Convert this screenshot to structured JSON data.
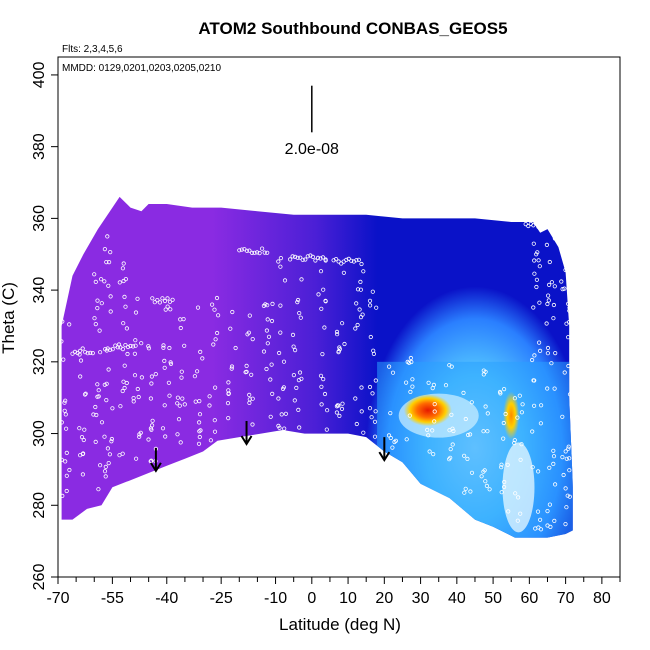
{
  "chart_data": {
    "type": "heatmap",
    "title": "ATOM2 Southbound CONBAS_GEOS5",
    "annotations": {
      "flights": "Flts: 2,3,4,5,6",
      "dates": "MMDD: 0129,0201,0203,0205,0210",
      "scale_label": "2.0e-08"
    },
    "xlabel": "Latitude (deg N)",
    "ylabel": "Theta (C)",
    "xlim": [
      -70,
      85
    ],
    "ylim": [
      260,
      405
    ],
    "x_tick_labels": [
      "-70",
      "-55",
      "-40",
      "-25",
      "-10",
      "0",
      "10",
      "20",
      "30",
      "40",
      "50",
      "60",
      "70",
      "80"
    ],
    "x_tick_values": [
      -70,
      -55,
      -40,
      -25,
      -10,
      0,
      10,
      20,
      30,
      40,
      50,
      60,
      70,
      80
    ],
    "y_tick_labels": [
      "260",
      "280",
      "300",
      "320",
      "340",
      "360",
      "380",
      "400"
    ],
    "y_tick_values": [
      260,
      280,
      300,
      320,
      340,
      360,
      380,
      400
    ],
    "arrow_latitudes": [
      -43,
      -18,
      20
    ],
    "colors": {
      "south": "#8a2be2",
      "mid": "#4b1fd6",
      "north": "#0a12c8",
      "tropic": "#2a7fff",
      "light": "#9fe6ff",
      "hot": "#e61a00",
      "warm": "#ffd000",
      "points": "#ffffff"
    }
  }
}
